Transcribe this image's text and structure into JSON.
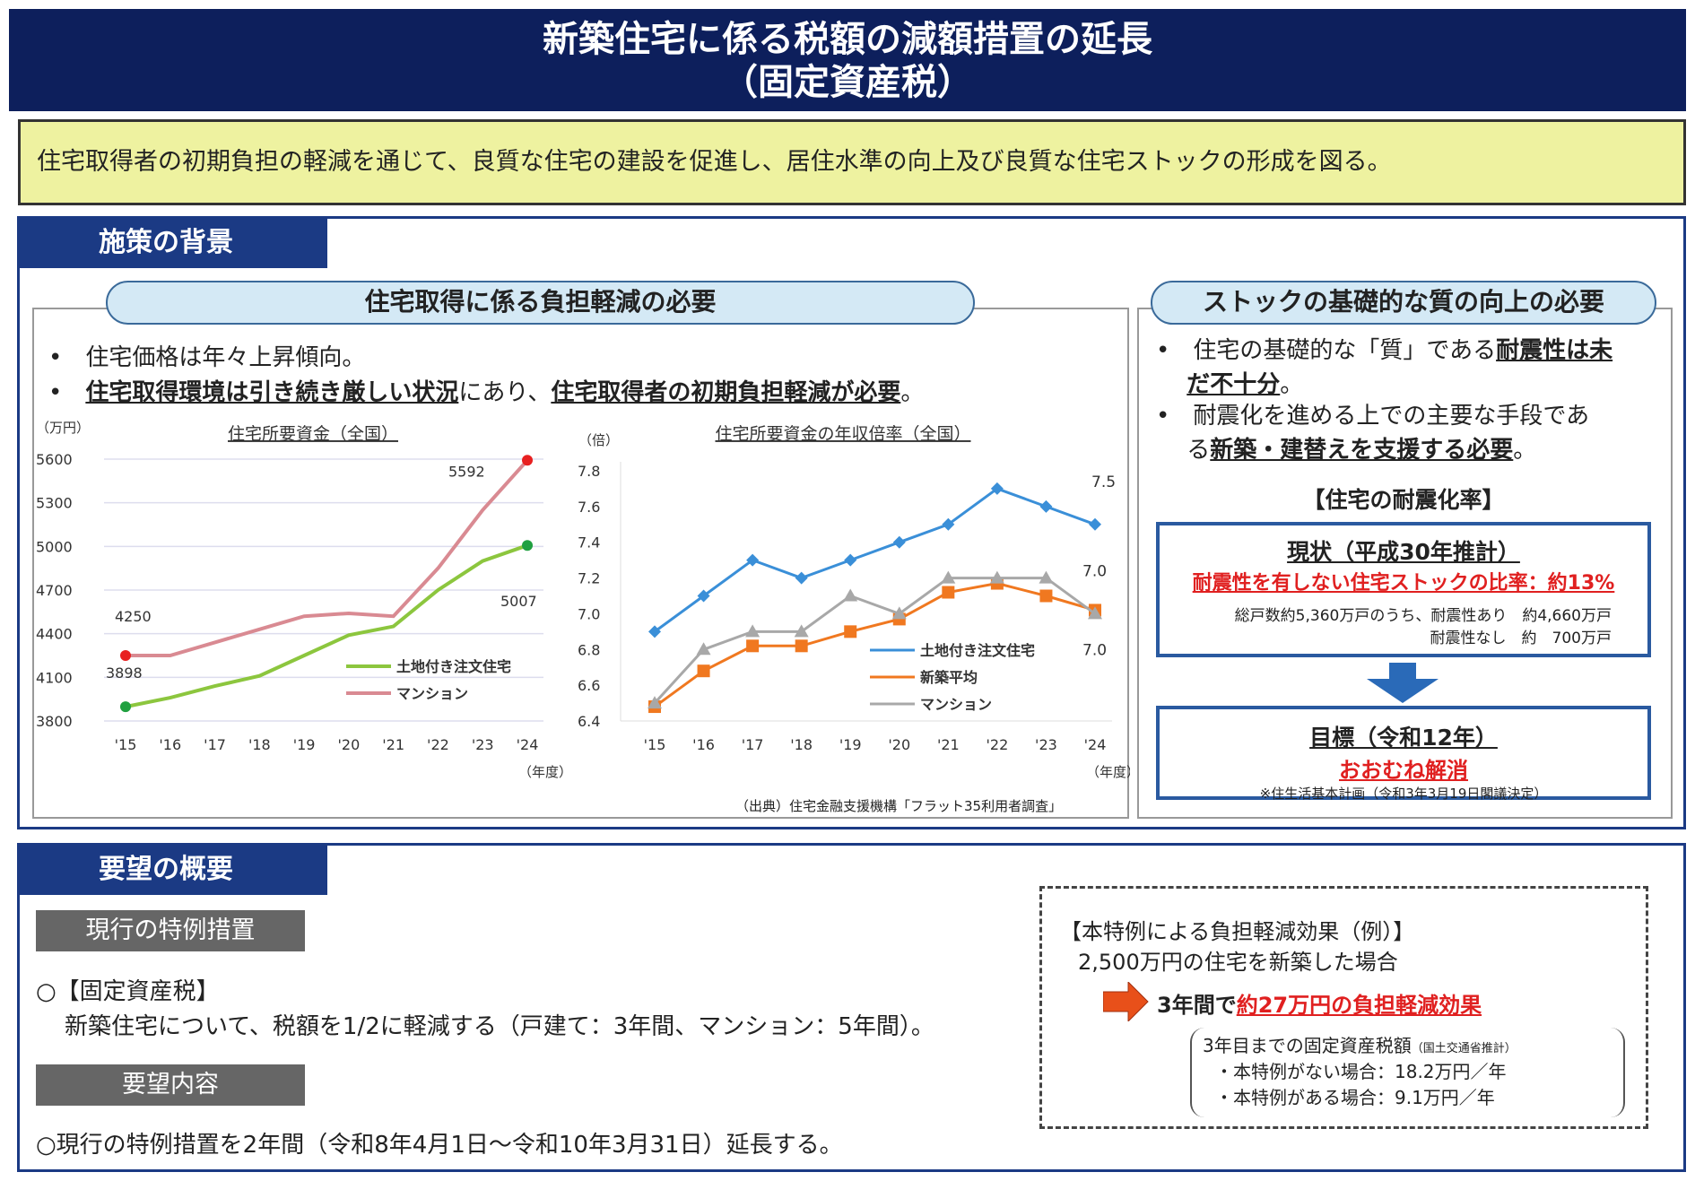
{
  "title": {
    "line1": "新築住宅に係る税額の減額措置の延長",
    "line2": "（固定資産税）"
  },
  "purpose": "住宅取得者の初期負担の軽減を通じて、良質な住宅の建設を促進し、居住水準の向上及び良質な住宅ストックの形成を図る。",
  "background": {
    "tab": "施策の背景",
    "left": {
      "header": "住宅取得に係る負担軽減の必要",
      "bullet1": "住宅価格は年々上昇傾向。",
      "bullet2_u1": "住宅取得環境は引き続き厳しい状況",
      "bullet2_mid": "にあり、",
      "bullet2_u2": "住宅取得者の初期負担軽減が必要",
      "bullet2_end": "。",
      "source": "（出典）住宅金融支援機構「フラット35利用者調査」"
    },
    "right": {
      "header": "ストックの基礎的な質の向上の必要",
      "bullet1a": "住宅の基礎的な「質」である",
      "bullet1u": "耐震性は未",
      "bullet1u2": "だ不十分",
      "bullet1end": "。",
      "bullet2a": "耐震化を進める上での主要な手段であ",
      "bullet2b": "る",
      "bullet2u": "新築・建替えを支援する必要",
      "bullet2end": "。",
      "rate_title": "【住宅の耐震化率】",
      "current": {
        "title": "現状（平成30年推計）",
        "highlight": "耐震性を有しない住宅ストックの比率：約13%",
        "detail1": "総戸数約5,360万戸のうち、耐震性あり　約4,660万戸",
        "detail2": "耐震性なし　約　700万戸"
      },
      "target": {
        "title": "目標（令和12年）",
        "highlight": "おおむね解消",
        "note": "※住生活基本計画（令和3年3月19日閣議決定）"
      }
    }
  },
  "chart_data": [
    {
      "type": "line",
      "title": "住宅所要資金（全国）",
      "ylabel": "（万円）",
      "xlabel": "（年度）",
      "categories": [
        "'15",
        "'16",
        "'17",
        "'18",
        "'19",
        "'20",
        "'21",
        "'22",
        "'23",
        "'24"
      ],
      "yticks": [
        "5600",
        "5300",
        "5000",
        "4700",
        "4400",
        "4100",
        "3800"
      ],
      "ylim": [
        3800,
        5600
      ],
      "series": [
        {
          "name": "土地付き注文住宅",
          "color": "#8cc63e",
          "values": [
            3898,
            3960,
            4040,
            4110,
            4250,
            4390,
            4450,
            4700,
            4900,
            5007
          ]
        },
        {
          "name": "マンション",
          "color": "#d98a92",
          "values": [
            4250,
            4250,
            4340,
            4430,
            4520,
            4540,
            4520,
            4850,
            5250,
            5592
          ]
        }
      ],
      "labels": {
        "start_green": "3898",
        "start_red": "4250",
        "end_green": "5007",
        "end_red": "5592"
      }
    },
    {
      "type": "line",
      "title": "住宅所要資金の年収倍率（全国）",
      "ylabel": "（倍）",
      "xlabel": "（年度）",
      "categories": [
        "'15",
        "'16",
        "'17",
        "'18",
        "'19",
        "'20",
        "'21",
        "'22",
        "'23",
        "'24"
      ],
      "yticks": [
        "7.8",
        "7.6",
        "7.4",
        "7.2",
        "7.0",
        "6.8",
        "6.6",
        "6.4"
      ],
      "ylim": [
        6.4,
        7.8
      ],
      "series": [
        {
          "name": "土地付き注文住宅",
          "color": "#3a8fd8",
          "marker": "diamond",
          "values": [
            6.9,
            7.1,
            7.3,
            7.2,
            7.3,
            7.4,
            7.5,
            7.7,
            7.6,
            7.5
          ]
        },
        {
          "name": "新築平均",
          "color": "#f07820",
          "marker": "square",
          "values": [
            6.48,
            6.68,
            6.82,
            6.82,
            6.9,
            6.97,
            7.12,
            7.17,
            7.1,
            7.02
          ]
        },
        {
          "name": "マンション",
          "color": "#a8a8a8",
          "marker": "triangle",
          "values": [
            6.5,
            6.8,
            6.9,
            6.9,
            7.1,
            7.0,
            7.2,
            7.2,
            7.2,
            7.0
          ]
        }
      ],
      "labels": {
        "end_blue": "7.5",
        "end_orange": "7.0",
        "end_gray": "7.0"
      }
    }
  ],
  "request": {
    "tab": "要望の概要",
    "current_label": "現行の特例措置",
    "current_head": "○【固定資産税】",
    "current_body": "新築住宅について、税額を1/2に軽減する（戸建て：3年間、マンション：5年間）。",
    "request_label": "要望内容",
    "request_body": "○現行の特例措置を2年間（令和8年4月1日～令和10年3月31日）延長する。",
    "effect": {
      "title": "【本特例による負担軽減効果（例）】",
      "case": "2,500万円の住宅を新築した場合",
      "result_a": "3年間で",
      "result_b": "約27万円の負担軽減効果",
      "tax_title": "3年目までの固定資産税額",
      "tax_note": "（国土交通省推計）",
      "without": "・本特例がない場合：18.2万円／年",
      "with": "・本特例がある場合：9.1万円／年"
    }
  }
}
